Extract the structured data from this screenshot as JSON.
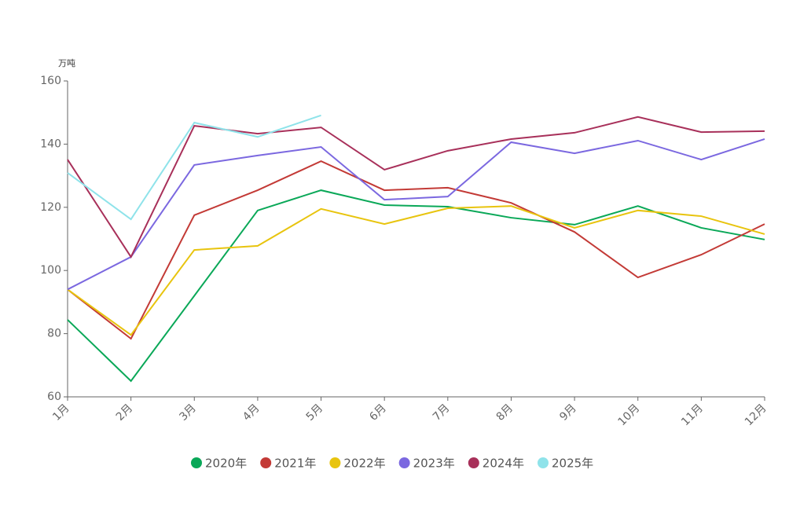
{
  "chart_data": {
    "type": "line",
    "y_unit": "万吨",
    "categories": [
      "1月",
      "2月",
      "3月",
      "4月",
      "5月",
      "6月",
      "7月",
      "8月",
      "9月",
      "10月",
      "11月",
      "12月"
    ],
    "ylim": [
      60,
      160
    ],
    "yticks": [
      60,
      80,
      100,
      120,
      140,
      160
    ],
    "series": [
      {
        "name": "2020年",
        "color": "#0aa858",
        "values": [
          84.4,
          65,
          92,
          119,
          125.4,
          120.7,
          120.2,
          116.7,
          114.5,
          120.4,
          113.5,
          109.8
        ]
      },
      {
        "name": "2021年",
        "color": "#c33a36",
        "values": [
          94,
          78.4,
          117.5,
          125.4,
          134.6,
          125.4,
          126.2,
          121.4,
          112.2,
          97.8,
          105,
          114.7
        ]
      },
      {
        "name": "2022年",
        "color": "#e8c40e",
        "values": [
          94,
          79.6,
          106.5,
          107.8,
          119.5,
          114.7,
          119.7,
          120.4,
          113.5,
          119,
          117.2,
          111.5
        ]
      },
      {
        "name": "2023年",
        "color": "#7b68e0",
        "values": [
          94,
          104.3,
          133.4,
          136.4,
          139.1,
          122.4,
          123.4,
          140.6,
          137.1,
          141.1,
          135.1,
          141.6
        ]
      },
      {
        "name": "2024年",
        "color": "#a8305a",
        "values": [
          135.1,
          104.3,
          145.8,
          143.3,
          145.3,
          131.9,
          137.9,
          141.6,
          143.6,
          148.6,
          143.8,
          144.1
        ]
      },
      {
        "name": "2025年",
        "color": "#8fe3ea",
        "values": [
          130.9,
          116.2,
          146.8,
          142.3,
          149.1,
          null,
          null,
          null,
          null,
          null,
          null,
          null
        ]
      }
    ]
  }
}
